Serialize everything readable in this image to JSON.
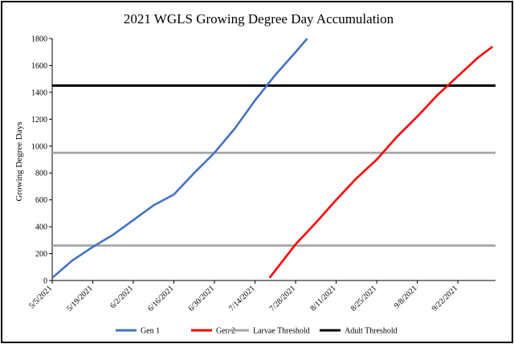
{
  "chart_data": {
    "type": "line",
    "title": "2021 WGLS Growing Degree Day Accumulation",
    "ylabel": "Growing Degree Days",
    "xlabel": "",
    "ylim": [
      0,
      1800
    ],
    "yticks": [
      0,
      200,
      400,
      600,
      800,
      1000,
      1200,
      1400,
      1600,
      1800
    ],
    "xrange": [
      "2021-05-05",
      "2021-10-05"
    ],
    "xtick_labels": [
      "5/5/2021",
      "5/19/2021",
      "6/2/2021",
      "6/16/2021",
      "6/30/2021",
      "7/14/2021",
      "7/28/2021",
      "8/11/2021",
      "8/25/2021",
      "9/8/2021",
      "9/22/2021"
    ],
    "xtick_dates": [
      "2021-05-05",
      "2021-05-19",
      "2021-06-02",
      "2021-06-16",
      "2021-06-30",
      "2021-07-14",
      "2021-07-28",
      "2021-08-11",
      "2021-08-25",
      "2021-09-08",
      "2021-09-22"
    ],
    "grid": false,
    "legend_position": "bottom",
    "series": [
      {
        "name": "Gen 1",
        "color": "#4472C4",
        "kind": "line",
        "points": [
          [
            "2021-05-05",
            20
          ],
          [
            "2021-05-12",
            150
          ],
          [
            "2021-05-19",
            250
          ],
          [
            "2021-05-26",
            340
          ],
          [
            "2021-06-02",
            450
          ],
          [
            "2021-06-09",
            560
          ],
          [
            "2021-06-16",
            640
          ],
          [
            "2021-06-23",
            800
          ],
          [
            "2021-06-30",
            950
          ],
          [
            "2021-07-07",
            1130
          ],
          [
            "2021-07-14",
            1340
          ],
          [
            "2021-07-21",
            1530
          ],
          [
            "2021-07-28",
            1700
          ],
          [
            "2021-08-01",
            1800
          ]
        ]
      },
      {
        "name": "Gen 2",
        "color": "#FF0000",
        "kind": "line",
        "points": [
          [
            "2021-07-19",
            20
          ],
          [
            "2021-07-28",
            270
          ],
          [
            "2021-08-04",
            430
          ],
          [
            "2021-08-11",
            600
          ],
          [
            "2021-08-18",
            760
          ],
          [
            "2021-08-25",
            900
          ],
          [
            "2021-09-01",
            1070
          ],
          [
            "2021-09-08",
            1220
          ],
          [
            "2021-09-15",
            1380
          ],
          [
            "2021-09-22",
            1520
          ],
          [
            "2021-09-29",
            1660
          ],
          [
            "2021-10-04",
            1740
          ]
        ]
      },
      {
        "name": "Larvae Threshold",
        "color": "#A6A6A6",
        "kind": "hline",
        "values": [
          260,
          950
        ]
      },
      {
        "name": "Adult Threshold",
        "color": "#000000",
        "kind": "hline",
        "values": [
          1450
        ]
      }
    ]
  }
}
